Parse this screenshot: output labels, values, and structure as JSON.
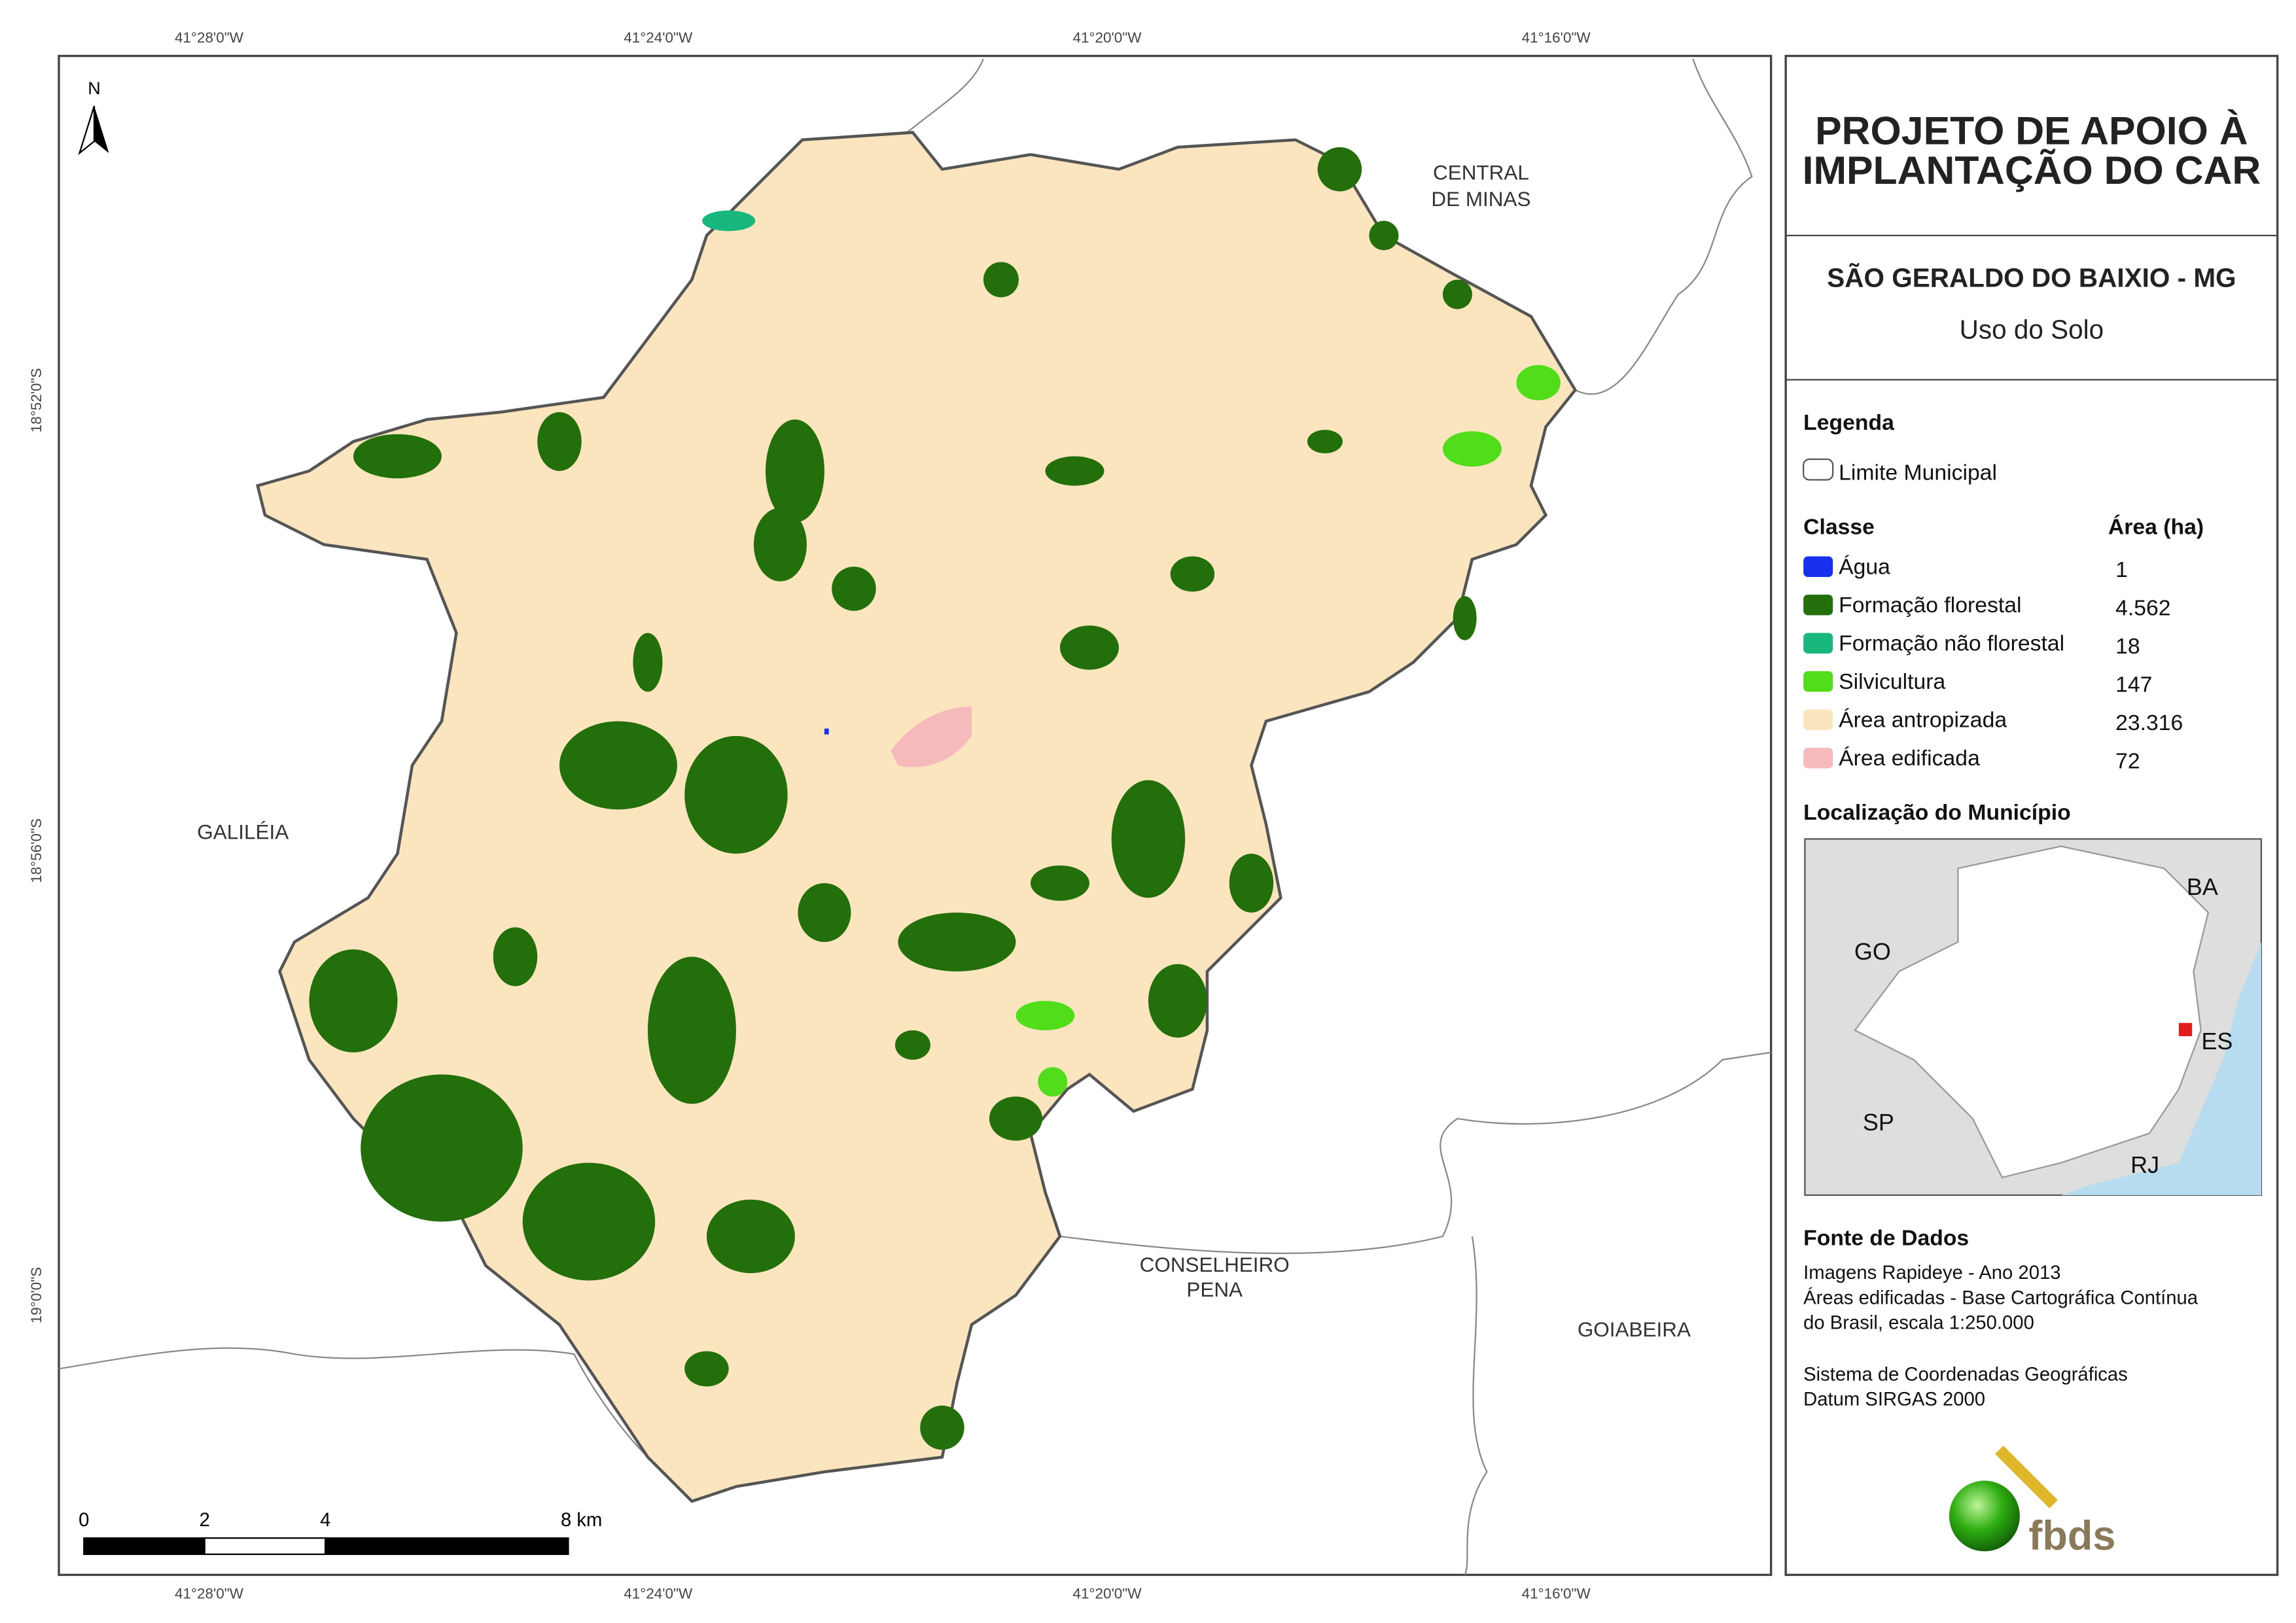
{
  "coordinates": {
    "top": [
      "41°28'0\"W",
      "41°24'0\"W",
      "41°20'0\"W",
      "41°16'0\"W"
    ],
    "bottom": [
      "41°28'0\"W",
      "41°24'0\"W",
      "41°20'0\"W",
      "41°16'0\"W"
    ],
    "left": [
      "18°52'0\"S",
      "18°56'0\"S",
      "19°0'0\"S"
    ]
  },
  "map": {
    "north": "N",
    "neighbors": [
      "CENTRAL",
      "DE MINAS",
      "GALILÉIA",
      "CONSELHEIRO",
      "PENA",
      "GOIABEIRA"
    ],
    "scale_labels": [
      "0",
      "2",
      "4",
      "8 km"
    ]
  },
  "panel": {
    "title": [
      "PROJETO DE APOIO À",
      "IMPLANTAÇÃO DO CAR"
    ],
    "municipality": "SÃO GERALDO DO BAIXIO - MG",
    "theme": "Uso do Solo",
    "legend": {
      "title": "Legenda",
      "boundary": "Limite Municipal",
      "class_header": "Classe",
      "area_header": "Área (ha)",
      "rows": [
        [
          "Água",
          "1"
        ],
        [
          "Formação florestal",
          "4.562"
        ],
        [
          "Formação não florestal",
          "18"
        ],
        [
          "Silvicultura",
          "147"
        ],
        [
          "Área antropizada",
          "23.316"
        ],
        [
          "Área edificada",
          "72"
        ]
      ]
    },
    "location": {
      "title": "Localização do Município",
      "labels": [
        "BA",
        "GO",
        "ES",
        "SP",
        "RJ"
      ]
    },
    "sources": {
      "title": "Fonte de Dados",
      "lines": [
        "Imagens Rapideye - Ano 2013",
        "Áreas edificadas - Base Cartográfica Contínua",
        "do Brasil, escala 1:250.000",
        "Sistema de Coordenadas Geográficas",
        "Datum SIRGAS 2000"
      ]
    },
    "logo": "fbds"
  }
}
